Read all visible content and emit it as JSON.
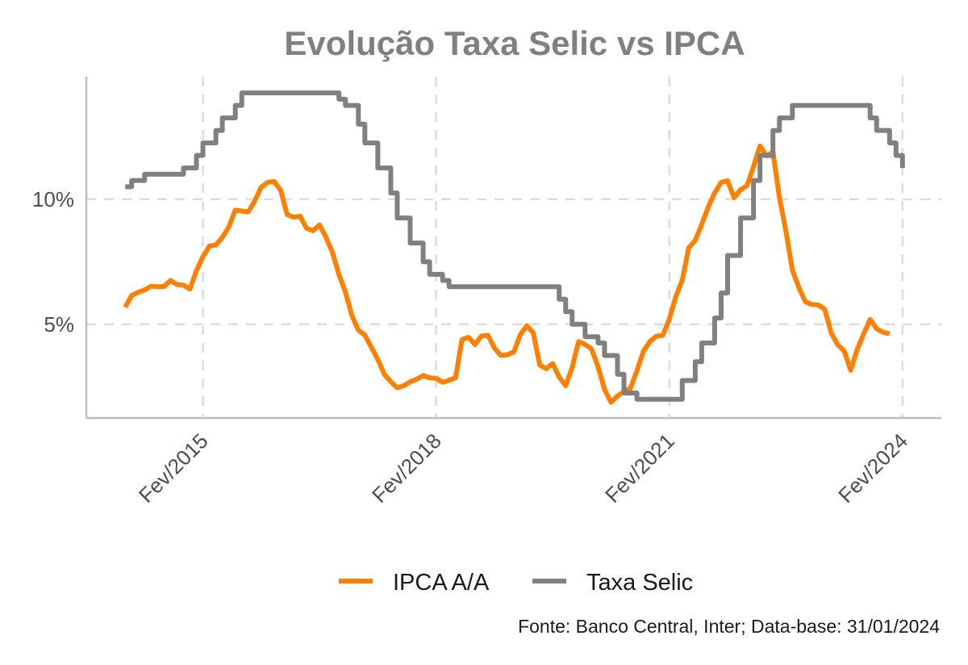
{
  "chart_data": {
    "type": "line",
    "title": "Evolução Taxa Selic vs IPCA",
    "caption": "Fonte: Banco Central, Inter; Data-base: 31/01/2024",
    "xlabel": "",
    "ylabel": "",
    "ylim": [
      1.25,
      14.9
    ],
    "xlim": [
      "2013-08",
      "2024-08"
    ],
    "grid": true,
    "legend_position": "bottom",
    "y_ticks": [
      {
        "value": 5,
        "label": "5%"
      },
      {
        "value": 10,
        "label": "10%"
      }
    ],
    "x_ticks": [
      {
        "value": "2015-02",
        "label": "Fev/2015"
      },
      {
        "value": "2018-02",
        "label": "Fev/2018"
      },
      {
        "value": "2021-02",
        "label": "Fev/2021"
      },
      {
        "value": "2024-02",
        "label": "Fev/2024"
      }
    ],
    "series": [
      {
        "name": "IPCA A/A",
        "color": "#ff7f00",
        "step": false,
        "start": "2014-02",
        "values": [
          5.68,
          6.15,
          6.28,
          6.37,
          6.52,
          6.5,
          6.51,
          6.75,
          6.59,
          6.56,
          6.41,
          7.14,
          7.7,
          8.13,
          8.17,
          8.47,
          8.89,
          9.56,
          9.53,
          9.49,
          9.93,
          10.48,
          10.67,
          10.71,
          10.36,
          9.39,
          9.28,
          9.32,
          8.84,
          8.74,
          8.97,
          8.48,
          7.87,
          6.99,
          6.29,
          5.35,
          4.76,
          4.57,
          4.08,
          3.6,
          3.0,
          2.71,
          2.46,
          2.54,
          2.7,
          2.8,
          2.95,
          2.86,
          2.84,
          2.68,
          2.76,
          2.86,
          4.39,
          4.48,
          4.19,
          4.53,
          4.56,
          4.05,
          3.75,
          3.78,
          3.89,
          4.58,
          4.94,
          4.66,
          3.37,
          3.22,
          3.43,
          2.89,
          2.54,
          3.27,
          4.31,
          4.19,
          4.01,
          3.3,
          2.4,
          1.88,
          2.13,
          2.31,
          2.44,
          3.14,
          3.92,
          4.31,
          4.52,
          4.56,
          5.2,
          6.1,
          6.76,
          8.06,
          8.35,
          8.99,
          9.68,
          10.25,
          10.67,
          10.74,
          10.06,
          10.38,
          10.54,
          11.3,
          12.13,
          11.73,
          11.89,
          10.07,
          8.73,
          7.17,
          6.47,
          5.9,
          5.79,
          5.77,
          5.6,
          4.65,
          4.18,
          3.94,
          3.16,
          3.99,
          4.61,
          5.19,
          4.82,
          4.68,
          4.62
        ]
      },
      {
        "name": "Taxa Selic",
        "color": "#808080",
        "step": true,
        "start": "2014-02",
        "values": [
          10.5,
          10.75,
          10.75,
          11,
          11,
          11,
          11,
          11,
          11,
          11.25,
          11.25,
          11.75,
          12.25,
          12.25,
          12.75,
          13.25,
          13.25,
          13.75,
          14.25,
          14.25,
          14.25,
          14.25,
          14.25,
          14.25,
          14.25,
          14.25,
          14.25,
          14.25,
          14.25,
          14.25,
          14.25,
          14.25,
          14.25,
          14,
          13.75,
          13.75,
          13,
          12.25,
          12.25,
          11.25,
          11.25,
          10.25,
          9.25,
          9.25,
          8.25,
          8.25,
          7.5,
          7,
          7,
          6.75,
          6.5,
          6.5,
          6.5,
          6.5,
          6.5,
          6.5,
          6.5,
          6.5,
          6.5,
          6.5,
          6.5,
          6.5,
          6.5,
          6.5,
          6.5,
          6.5,
          6.5,
          6,
          5.5,
          5,
          5,
          4.5,
          4.5,
          4.25,
          3.75,
          3.75,
          3,
          2.25,
          2.25,
          2,
          2,
          2,
          2,
          2,
          2,
          2,
          2.75,
          2.75,
          3.5,
          4.25,
          4.25,
          5.25,
          6.25,
          7.75,
          7.75,
          9.25,
          9.25,
          10.75,
          11.75,
          11.75,
          12.75,
          13.25,
          13.25,
          13.75,
          13.75,
          13.75,
          13.75,
          13.75,
          13.75,
          13.75,
          13.75,
          13.75,
          13.75,
          13.75,
          13.75,
          13.25,
          12.75,
          12.75,
          12.25,
          11.75,
          11.25
        ]
      }
    ]
  }
}
